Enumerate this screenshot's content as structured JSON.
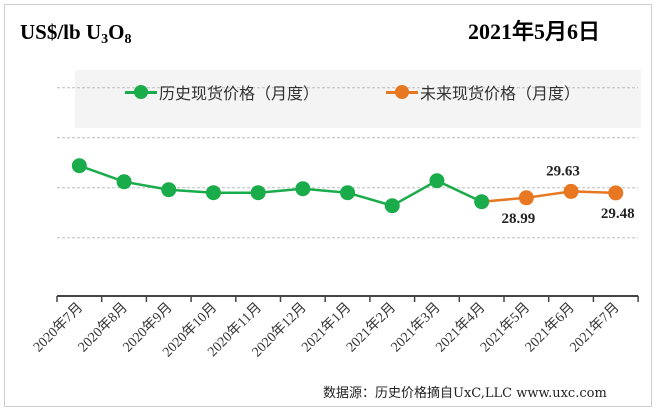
{
  "chart_data": {
    "type": "line",
    "title": "2021年5月6日",
    "ylabel_html": "US$/lb U3O8",
    "ylabel_parts": {
      "main": "US$/lb U",
      "sub1": "3",
      "mid": "O",
      "sub2": "8"
    },
    "categories": [
      "2020年7月",
      "2020年8月",
      "2020年9月",
      "2020年10月",
      "2020年11月",
      "2020年12月",
      "2021年1月",
      "2021年2月",
      "2021年3月",
      "2021年4月",
      "2021年5月",
      "2021年6月",
      "2021年7月"
    ],
    "series": [
      {
        "name": "历史现货价格（月度）",
        "color": "#1aab4b",
        "values": [
          32.2,
          30.6,
          29.8,
          29.5,
          29.5,
          29.9,
          29.5,
          28.2,
          30.7,
          28.6,
          null,
          null,
          null
        ]
      },
      {
        "name": "未来现货价格（月度）",
        "color": "#e87722",
        "values": [
          null,
          null,
          null,
          null,
          null,
          null,
          null,
          null,
          null,
          28.6,
          28.99,
          29.63,
          29.48
        ]
      }
    ],
    "data_labels": [
      {
        "category_index": 10,
        "text": "28.99",
        "position": "below"
      },
      {
        "category_index": 11,
        "text": "29.63",
        "position": "above"
      },
      {
        "category_index": 12,
        "text": "29.48",
        "position": "below"
      }
    ],
    "gridlines": [
      40,
      35,
      30,
      25
    ],
    "ylim": [
      19,
      42
    ],
    "grid": true,
    "legend_placement": "top"
  },
  "source": "数据源：历史价格摘自UxC,LLC  www.uxc.com"
}
